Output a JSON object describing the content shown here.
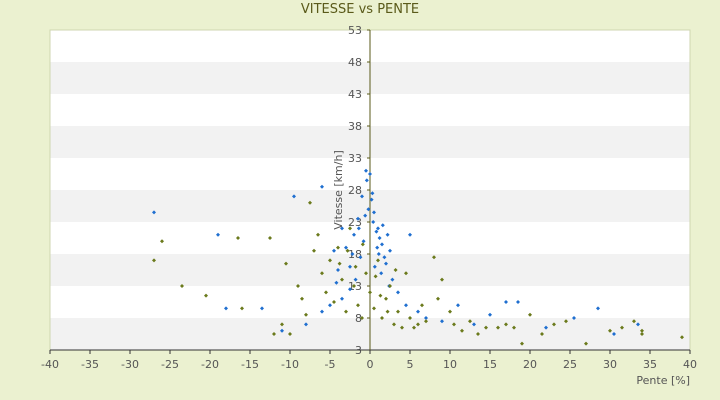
{
  "chart_data": {
    "type": "scatter",
    "title": "VITESSE vs PENTE",
    "xlabel": "Pente [%]",
    "ylabel": "Vitesse [km/h]",
    "xlim": [
      -40,
      40
    ],
    "ylim": [
      3,
      53
    ],
    "x_ticks": [
      -40,
      -35,
      -30,
      -25,
      -20,
      -15,
      -10,
      -5,
      0,
      5,
      10,
      15,
      20,
      25,
      30,
      35,
      40
    ],
    "y_ticks": [
      3,
      8,
      13,
      18,
      23,
      28,
      33,
      38,
      43,
      48,
      53
    ],
    "x_tick_labels": [
      "-40",
      "-35",
      "-30",
      "-25",
      "-20",
      "-15",
      "-10",
      "-5",
      "0",
      "5",
      "10",
      "15",
      "20",
      "25",
      "30",
      "35",
      "40"
    ],
    "y_tick_labels": [
      "3",
      "8",
      "13",
      "18",
      "23",
      "28",
      "33",
      "38",
      "43",
      "48",
      "53"
    ],
    "grid": "horizontal alternating bands",
    "legend": "none",
    "series": [
      {
        "color": "#1f6fd0",
        "points": [
          [
            -27,
            24.5
          ],
          [
            -19,
            21
          ],
          [
            -9.5,
            27
          ],
          [
            -6,
            28.5
          ],
          [
            -4.5,
            18.5
          ],
          [
            -4,
            15.5
          ],
          [
            -3.5,
            22
          ],
          [
            -3,
            19
          ],
          [
            -2.5,
            16
          ],
          [
            -2,
            21
          ],
          [
            -1.5,
            23.5
          ],
          [
            -1,
            27
          ],
          [
            -0.5,
            31
          ],
          [
            -0.4,
            29.5
          ],
          [
            0,
            30.5
          ],
          [
            0.2,
            26.5
          ],
          [
            0.5,
            24.5
          ],
          [
            1,
            22
          ],
          [
            1.2,
            20.5
          ],
          [
            1.5,
            19.5
          ],
          [
            1.8,
            17.5
          ],
          [
            2,
            16.5
          ],
          [
            2.2,
            21
          ],
          [
            2.5,
            18.5
          ],
          [
            -0.2,
            25
          ],
          [
            0.4,
            23
          ],
          [
            0.8,
            21.5
          ],
          [
            1.1,
            18
          ],
          [
            -0.8,
            20
          ],
          [
            -1.2,
            17.5
          ],
          [
            0.6,
            16
          ],
          [
            1.4,
            15
          ],
          [
            -1.8,
            14
          ],
          [
            -2.5,
            12.5
          ],
          [
            -3.5,
            11
          ],
          [
            -5,
            10
          ],
          [
            -6,
            9
          ],
          [
            -8,
            7
          ],
          [
            -11,
            6
          ],
          [
            -13.5,
            9.5
          ],
          [
            -18,
            9.5
          ],
          [
            2.8,
            14
          ],
          [
            3.5,
            12
          ],
          [
            4.5,
            10
          ],
          [
            5,
            21
          ],
          [
            6,
            9
          ],
          [
            7,
            8
          ],
          [
            9,
            7.5
          ],
          [
            11,
            10
          ],
          [
            13,
            7
          ],
          [
            15,
            8.5
          ],
          [
            17,
            10.5
          ],
          [
            18.5,
            10.5
          ],
          [
            22,
            6.5
          ],
          [
            25.5,
            8
          ],
          [
            28.5,
            9.5
          ],
          [
            30.5,
            5.5
          ],
          [
            33.5,
            7
          ],
          [
            0.3,
            27.5
          ],
          [
            -0.6,
            24
          ],
          [
            0.9,
            19
          ],
          [
            1.6,
            22.5
          ],
          [
            -1.4,
            22
          ],
          [
            -2.2,
            18
          ],
          [
            2.4,
            13
          ],
          [
            -4.2,
            13.5
          ]
        ]
      },
      {
        "color": "#6b7a1c",
        "points": [
          [
            -26,
            20
          ],
          [
            -27,
            17
          ],
          [
            -23.5,
            13
          ],
          [
            -20.5,
            11.5
          ],
          [
            -16.5,
            20.5
          ],
          [
            -16,
            9.5
          ],
          [
            -12.5,
            20.5
          ],
          [
            -12,
            5.5
          ],
          [
            -11,
            7
          ],
          [
            -10.5,
            16.5
          ],
          [
            -10,
            5.5
          ],
          [
            -9,
            13
          ],
          [
            -8.5,
            11
          ],
          [
            -8,
            8.5
          ],
          [
            -7.5,
            26
          ],
          [
            -7,
            18.5
          ],
          [
            -6.5,
            21
          ],
          [
            -6,
            15
          ],
          [
            -5.5,
            12
          ],
          [
            -5,
            17
          ],
          [
            -4.5,
            10.5
          ],
          [
            -4,
            19
          ],
          [
            -3.5,
            14
          ],
          [
            -3,
            9
          ],
          [
            -2.5,
            22
          ],
          [
            -2,
            13
          ],
          [
            -1.5,
            10
          ],
          [
            -1,
            8
          ],
          [
            -0.5,
            15
          ],
          [
            0,
            12
          ],
          [
            0.5,
            9.5
          ],
          [
            1,
            17
          ],
          [
            1.5,
            8
          ],
          [
            2,
            11
          ],
          [
            2.5,
            13
          ],
          [
            3,
            7
          ],
          [
            3.5,
            9
          ],
          [
            4,
            6.5
          ],
          [
            4.5,
            15
          ],
          [
            5,
            8
          ],
          [
            5.5,
            6.5
          ],
          [
            6,
            7
          ],
          [
            6.5,
            10
          ],
          [
            7,
            7.5
          ],
          [
            8,
            17.5
          ],
          [
            8.5,
            11
          ],
          [
            9,
            14
          ],
          [
            10,
            9
          ],
          [
            10.5,
            7
          ],
          [
            11.5,
            6
          ],
          [
            12.5,
            7.5
          ],
          [
            13.5,
            5.5
          ],
          [
            14.5,
            6.5
          ],
          [
            16,
            6.5
          ],
          [
            17,
            7
          ],
          [
            18,
            6.5
          ],
          [
            19,
            4
          ],
          [
            20,
            8.5
          ],
          [
            21.5,
            5.5
          ],
          [
            23,
            7
          ],
          [
            24.5,
            7.5
          ],
          [
            27,
            4
          ],
          [
            30,
            6
          ],
          [
            31.5,
            6.5
          ],
          [
            33,
            7.5
          ],
          [
            34,
            5.5
          ],
          [
            34,
            6
          ],
          [
            39,
            5
          ],
          [
            -1.8,
            16
          ],
          [
            -0.9,
            19.5
          ],
          [
            0.7,
            14.5
          ],
          [
            1.3,
            11.5
          ],
          [
            2.2,
            9
          ],
          [
            3.2,
            15.5
          ],
          [
            -2.8,
            18.5
          ],
          [
            -3.8,
            16.5
          ]
        ]
      }
    ]
  }
}
